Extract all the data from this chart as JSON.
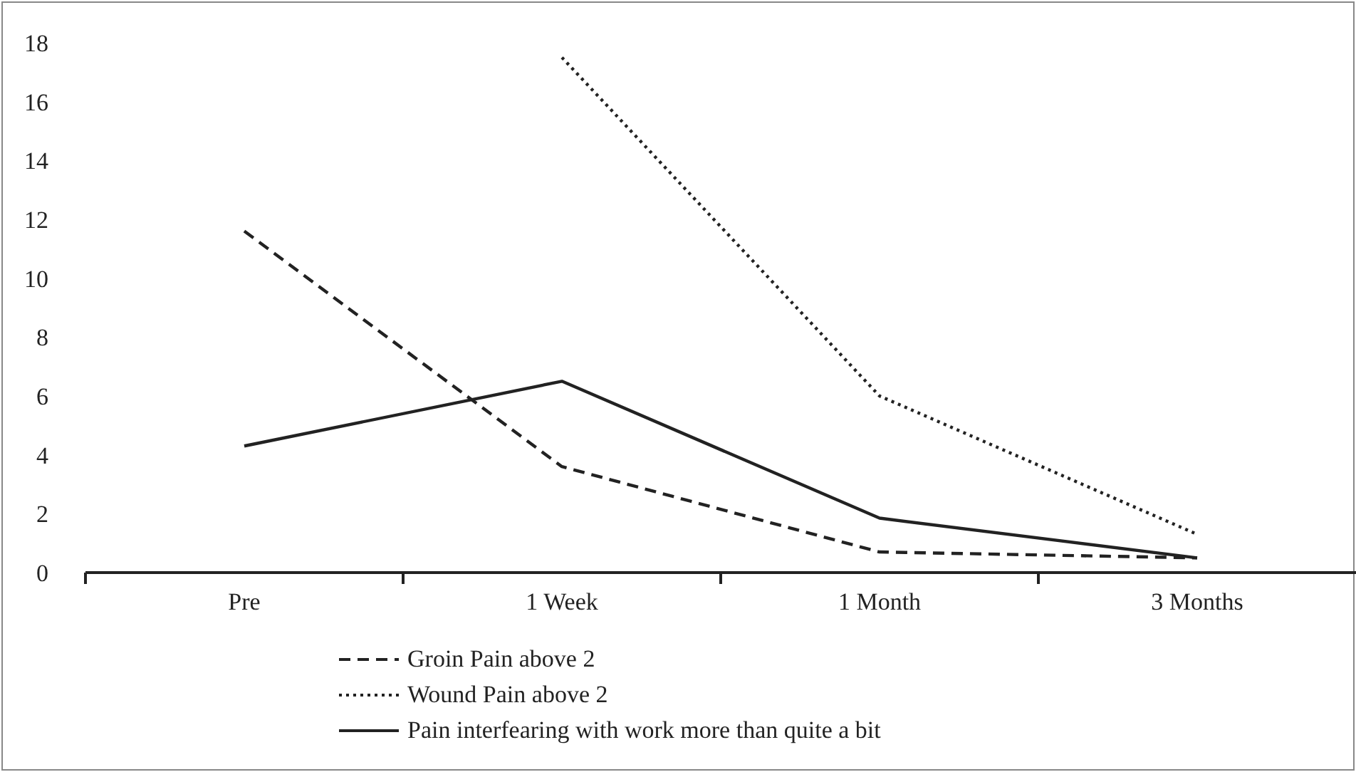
{
  "chart_data": {
    "type": "line",
    "categories": [
      "Pre",
      "1 Week",
      "1 Month",
      "3 Months"
    ],
    "series": [
      {
        "name": "Groin Pain above 2",
        "color": "#222222",
        "line_style": "dashed",
        "values": [
          11.6,
          3.6,
          0.7,
          0.5
        ]
      },
      {
        "name": "Wound Pain above 2",
        "color": "#222222",
        "line_style": "dotted",
        "values": [
          null,
          17.5,
          6.0,
          1.3
        ]
      },
      {
        "name": "Pain interfearing with work more than quite a bit",
        "color": "#222222",
        "line_style": "solid",
        "values": [
          4.3,
          6.5,
          1.85,
          0.5
        ]
      }
    ],
    "ylim": [
      0,
      18
    ],
    "yticks": [
      0,
      2,
      4,
      6,
      8,
      10,
      12,
      14,
      16,
      18
    ],
    "grid": false,
    "legend": "bottom",
    "marker": "none"
  }
}
